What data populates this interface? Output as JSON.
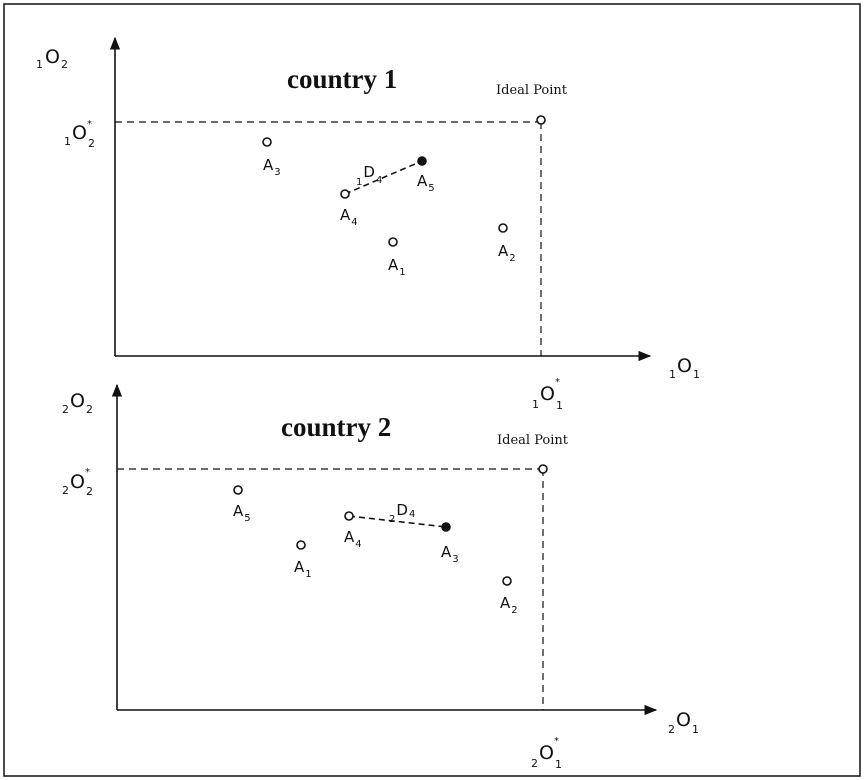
{
  "panels": [
    {
      "title": "country 1",
      "ideal_label": "Ideal Point",
      "y_axis": {
        "pre": "1",
        "main": "O",
        "post": "2"
      },
      "x_axis": {
        "pre": "1",
        "main": "O",
        "post": "1"
      },
      "y_star": {
        "pre": "1",
        "main": "O",
        "post": "2",
        "star": "*"
      },
      "x_star": {
        "pre": "1",
        "main": "O",
        "post": "1",
        "star": "*"
      },
      "points": [
        {
          "label": "A",
          "sub": "3",
          "filled": false
        },
        {
          "label": "A",
          "sub": "4",
          "filled": false
        },
        {
          "label": "A",
          "sub": "5",
          "filled": true
        },
        {
          "label": "A",
          "sub": "1",
          "filled": false
        },
        {
          "label": "A",
          "sub": "2",
          "filled": false
        }
      ],
      "distance": {
        "pre": "1",
        "main": "D",
        "post": "4"
      }
    },
    {
      "title": "country 2",
      "ideal_label": "Ideal Point",
      "y_axis": {
        "pre": "2",
        "main": "O",
        "post": "2"
      },
      "x_axis": {
        "pre": "2",
        "main": "O",
        "post": "1"
      },
      "y_star": {
        "pre": "2",
        "main": "O",
        "post": "2",
        "star": "*"
      },
      "x_star": {
        "pre": "2",
        "main": "O",
        "post": "1",
        "star": "*"
      },
      "points": [
        {
          "label": "A",
          "sub": "5",
          "filled": false
        },
        {
          "label": "A",
          "sub": "4",
          "filled": false
        },
        {
          "label": "A",
          "sub": "3",
          "filled": true
        },
        {
          "label": "A",
          "sub": "1",
          "filled": false
        },
        {
          "label": "A",
          "sub": "2",
          "filled": false
        }
      ],
      "distance": {
        "pre": "2",
        "main": "D",
        "post": "4"
      }
    }
  ]
}
